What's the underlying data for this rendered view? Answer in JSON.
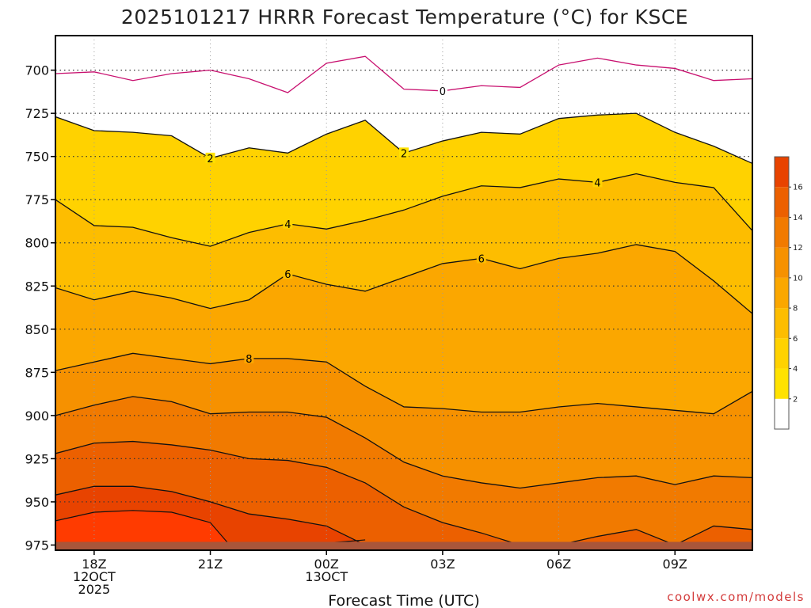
{
  "colors": {
    "frame": "#000000",
    "freezing_line": "#c8106f",
    "contour_line": "#111111",
    "ground": "#a9563a",
    "credit": "#d33b3b"
  },
  "chart_data": {
    "type": "heatmap",
    "title": "2025101217 HRRR Forecast Temperature (°C) for KSCE",
    "xlabel": "Forecast Time (UTC)",
    "ylabel": "",
    "x_unit": "hours after 12OCT 2025 17Z",
    "xlim": [
      17,
      35
    ],
    "x_ticks": [
      {
        "x": 18,
        "lines": [
          "18Z",
          "12OCT",
          "2025"
        ]
      },
      {
        "x": 21,
        "lines": [
          "21Z"
        ]
      },
      {
        "x": 24,
        "lines": [
          "00Z",
          "13OCT"
        ]
      },
      {
        "x": 27,
        "lines": [
          "03Z"
        ]
      },
      {
        "x": 30,
        "lines": [
          "06Z"
        ]
      },
      {
        "x": 33,
        "lines": [
          "09Z"
        ]
      }
    ],
    "y_unit": "hPa",
    "ylim_top_to_bottom": [
      680,
      978
    ],
    "y_ticks": [
      700,
      725,
      750,
      775,
      800,
      825,
      850,
      875,
      900,
      925,
      950,
      975
    ],
    "y_gridlines": [
      700,
      725,
      975
    ],
    "ground_level_hPa": 975,
    "colorbar": {
      "levels": [
        0,
        2,
        4,
        6,
        8,
        10,
        12,
        14,
        16,
        18
      ],
      "labels": [
        2,
        4,
        6,
        8,
        10,
        12,
        14,
        16
      ],
      "fills": [
        "#ffffff",
        "#ffff00",
        "#ffe200",
        "#ffd200",
        "#fdbd00",
        "#fba700",
        "#f69100",
        "#f17a00",
        "#ec6000",
        "#e84300",
        "#ff3b00"
      ]
    },
    "x": [
      17,
      18,
      19,
      20,
      21,
      22,
      23,
      24,
      25,
      26,
      27,
      28,
      29,
      30,
      31,
      32,
      33,
      34,
      35
    ],
    "contours": [
      {
        "level": 0,
        "label": "0",
        "label_x": 27,
        "y": [
          702,
          701,
          706,
          702,
          700,
          705,
          713,
          696,
          692,
          711,
          712,
          709,
          710,
          697,
          693,
          697,
          699,
          706,
          705
        ]
      },
      {
        "level": 2,
        "label": "2",
        "label_x": 21,
        "y": [
          727,
          735,
          736,
          738,
          751,
          745,
          748,
          737,
          729,
          748,
          741,
          736,
          737,
          728,
          726,
          725,
          736,
          744,
          754
        ]
      },
      {
        "level": 4,
        "label": "4",
        "label_x": 31,
        "y": [
          775,
          790,
          791,
          797,
          802,
          794,
          789,
          792,
          787,
          781,
          773,
          767,
          768,
          763,
          765,
          760,
          765,
          768,
          793
        ]
      },
      {
        "level": 4,
        "label": "4",
        "label_x": 23,
        "y": []
      },
      {
        "level": 6,
        "label": "6",
        "label_x": 23,
        "y": [
          826,
          833,
          828,
          832,
          838,
          833,
          818,
          824,
          828,
          820,
          812,
          809,
          815,
          809,
          806,
          801,
          805,
          822,
          841
        ]
      },
      {
        "level": 8,
        "label": "8",
        "label_x": 22,
        "y": [
          874,
          869,
          864,
          867,
          870,
          867,
          867,
          869,
          883,
          895,
          896,
          898,
          898,
          895,
          893,
          895,
          897,
          899,
          886
        ]
      },
      {
        "level": 10,
        "label": "",
        "label_x": 0,
        "y": [
          900,
          894,
          889,
          892,
          899,
          898,
          898,
          901,
          913,
          927,
          935,
          939,
          942,
          939,
          936,
          935,
          940,
          935,
          936
        ]
      },
      {
        "level": 12,
        "label": "",
        "label_x": 0,
        "y": [
          922,
          916,
          915,
          917,
          920,
          925,
          926,
          930,
          939,
          953,
          962,
          968,
          975,
          975,
          970,
          966,
          975,
          964,
          966
        ]
      },
      {
        "level": 14,
        "label": "",
        "label_x": 0,
        "y": [
          946,
          941,
          941,
          944,
          950,
          957,
          960,
          964,
          975
        ]
      }
    ],
    "warm_pockets": [
      {
        "level": 16,
        "x": [
          17,
          18,
          19,
          20,
          21,
          21.5
        ],
        "y": [
          961,
          956,
          955,
          956,
          962,
          975
        ]
      },
      {
        "level": 16,
        "x": [
          23.2,
          24,
          25,
          24.5,
          23.2
        ],
        "y": [
          975,
          974,
          972,
          973,
          975
        ]
      }
    ],
    "credit": "coolwx.com/models"
  }
}
